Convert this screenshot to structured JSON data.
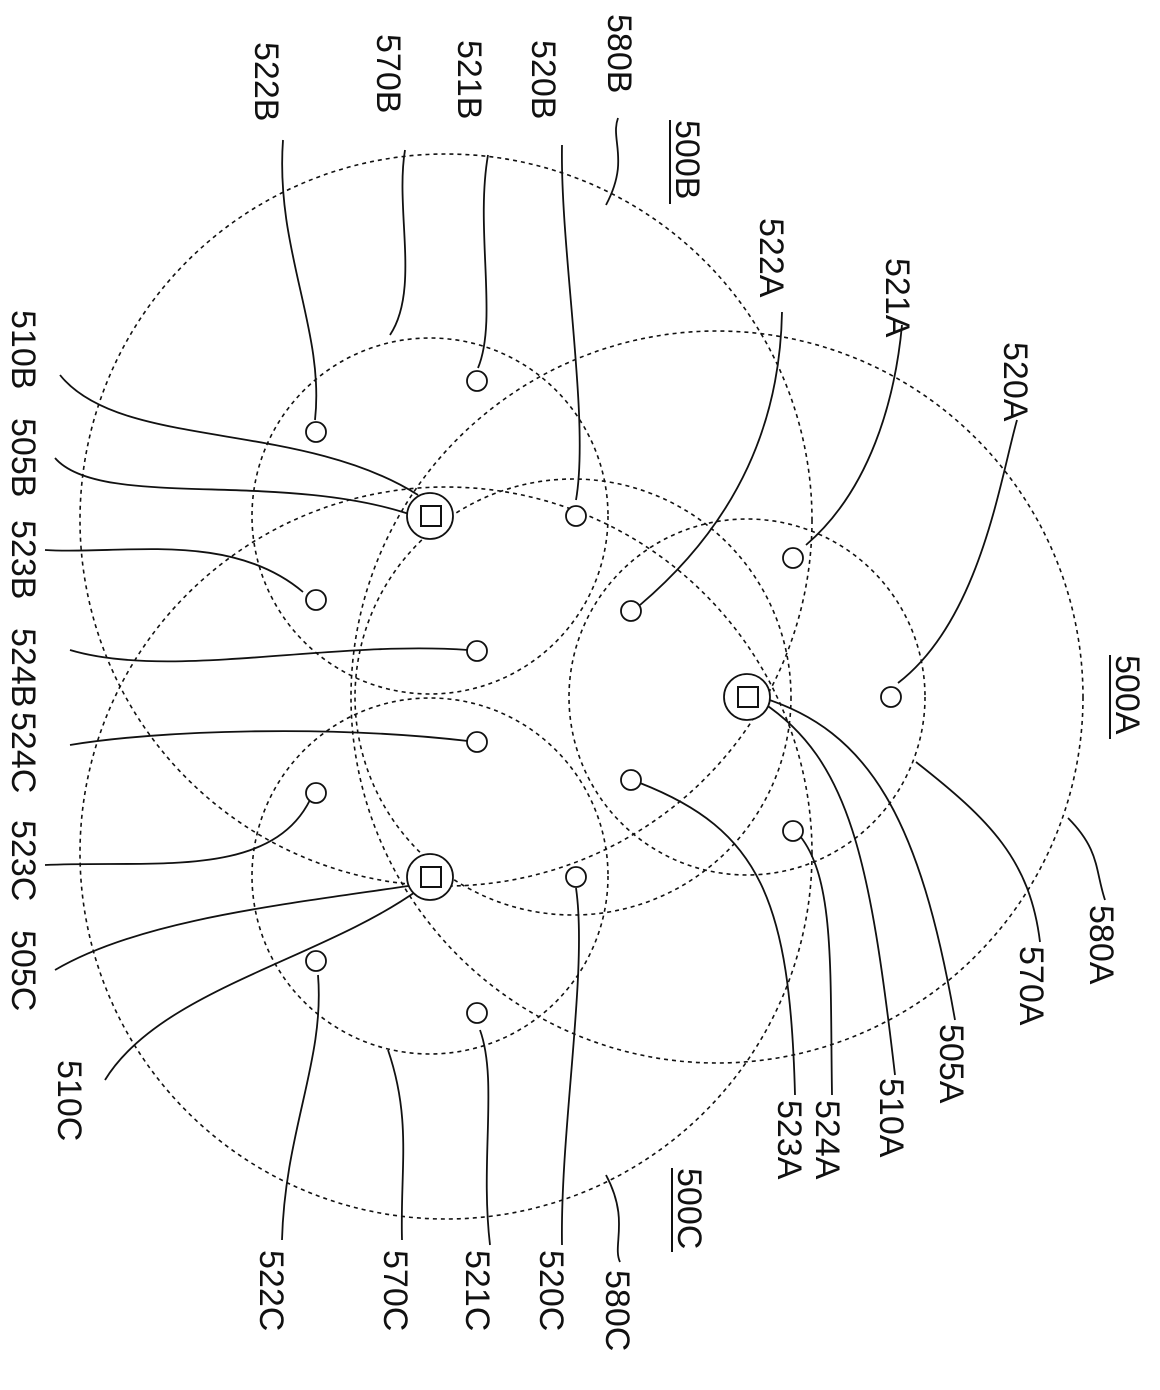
{
  "figure": {
    "group_labels": [
      {
        "id": "500A",
        "text": "500A"
      },
      {
        "id": "500B",
        "text": "500B"
      },
      {
        "id": "500C",
        "text": "500C"
      }
    ],
    "reference_labels": {
      "580A": "580A",
      "570A": "570A",
      "505A": "505A",
      "510A": "510A",
      "520A": "520A",
      "521A": "521A",
      "522A": "522A",
      "523A": "523A",
      "524A": "524A",
      "580B": "580B",
      "570B": "570B",
      "505B": "505B",
      "510B": "510B",
      "520B": "520B",
      "521B": "521B",
      "522B": "522B",
      "523B": "523B",
      "524B": "524B",
      "580C": "580C",
      "570C": "570C",
      "505C": "505C",
      "510C": "510C",
      "520C": "520C",
      "521C": "521C",
      "522C": "522C",
      "523C": "523C",
      "524C": "524C"
    }
  }
}
